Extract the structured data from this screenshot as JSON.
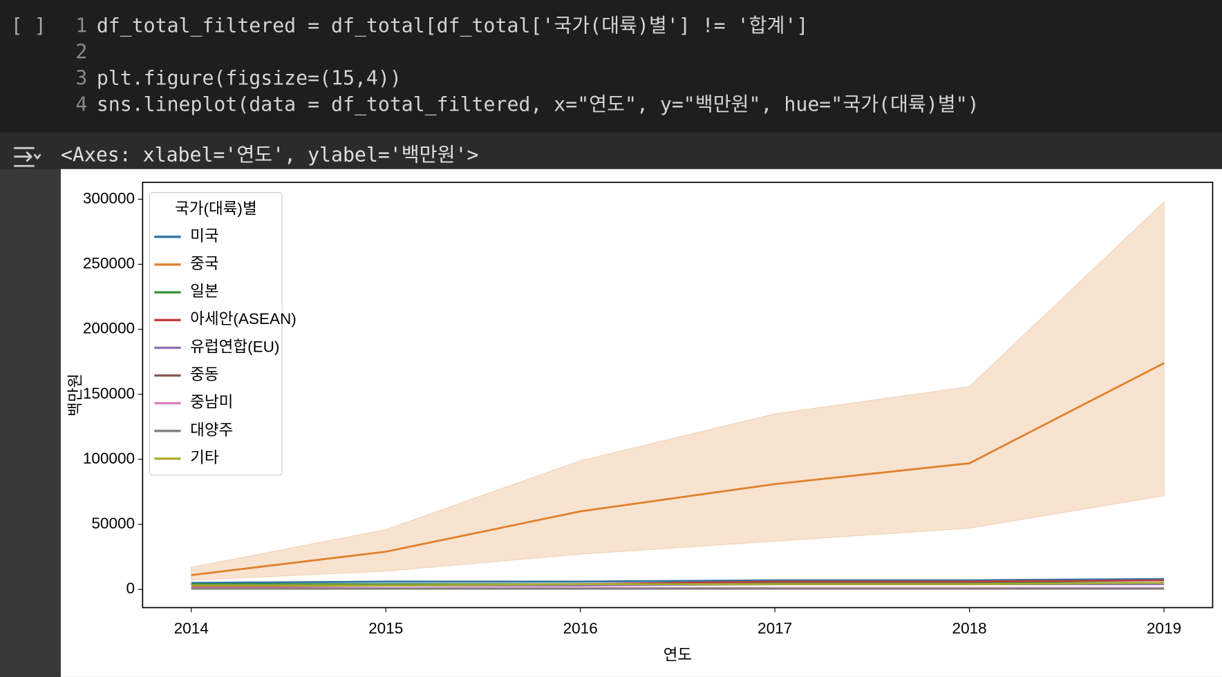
{
  "cell": {
    "run_marker": "[ ]",
    "lines": [
      {
        "number": "1",
        "code": "df_total_filtered = df_total[df_total['국가(대륙)별'] != '합계']"
      },
      {
        "number": "2"
      },
      {
        "number": "3",
        "code": "plt.figure(figsize=(15,4))"
      },
      {
        "number": "4",
        "code": "sns.lineplot(data = df_total_filtered, x=\"연도\", y=\"백만원\", hue=\"국가(대륙)별\")"
      }
    ]
  },
  "output": {
    "text": "<Axes: xlabel='연도', ylabel='백만원'>"
  },
  "chart_data": {
    "type": "line",
    "xlabel": "연도",
    "ylabel": "백만원",
    "x": [
      2014,
      2015,
      2016,
      2017,
      2018,
      2019
    ],
    "xlim": [
      2013.75,
      2019.25
    ],
    "xticks": [
      2014,
      2015,
      2016,
      2017,
      2018,
      2019
    ],
    "ylim": [
      -14000,
      313000
    ],
    "yticks": [
      0,
      50000,
      100000,
      150000,
      200000,
      250000,
      300000
    ],
    "legend_title": "국가(대륙)별",
    "legend_loc": "upper left",
    "series": [
      {
        "name": "미국",
        "color": "#3274a1",
        "values": [
          5000,
          6000,
          6000,
          7000,
          7000,
          8000
        ]
      },
      {
        "name": "중국",
        "color": "#e1812c",
        "values": [
          11000,
          29000,
          60000,
          81000,
          97000,
          174000
        ],
        "band_lower": [
          7000,
          14000,
          27000,
          37000,
          47000,
          72000
        ],
        "band_upper": [
          17000,
          46000,
          99000,
          135000,
          156000,
          298000
        ]
      },
      {
        "name": "일본",
        "color": "#3a923a",
        "values": [
          4000,
          4000,
          4000,
          5000,
          5000,
          5000
        ]
      },
      {
        "name": "아세안(ASEAN)",
        "color": "#c03d3e",
        "values": [
          2000,
          3000,
          4000,
          6000,
          6000,
          7000
        ]
      },
      {
        "name": "유럽연합(EU)",
        "color": "#9372b2",
        "values": [
          3000,
          3000,
          3000,
          4000,
          4000,
          4000
        ]
      },
      {
        "name": "중동",
        "color": "#845b53",
        "values": [
          1000,
          1000,
          1000,
          1000,
          1000,
          1000
        ]
      },
      {
        "name": "중남미",
        "color": "#d684bd",
        "values": [
          1000,
          1000,
          1000,
          1000,
          1000,
          1000
        ]
      },
      {
        "name": "대양주",
        "color": "#7f7f7f",
        "values": [
          500,
          500,
          500,
          500,
          500,
          500
        ]
      },
      {
        "name": "기타",
        "color": "#a9aa35",
        "values": [
          3000,
          3000,
          4000,
          4000,
          4000,
          5000
        ]
      }
    ]
  }
}
